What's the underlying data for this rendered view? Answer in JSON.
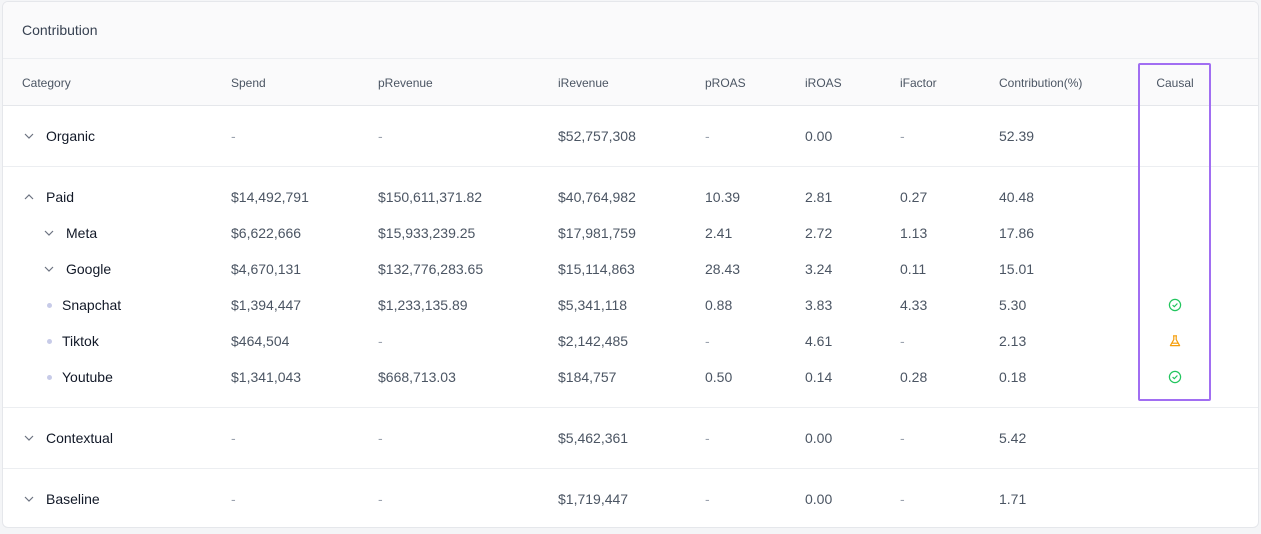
{
  "card": {
    "title": "Contribution"
  },
  "columns": [
    "Category",
    "Spend",
    "pRevenue",
    "iRevenue",
    "pROAS",
    "iROAS",
    "iFactor",
    "Contribution(%)",
    "Causal"
  ],
  "groups": [
    {
      "rows": [
        {
          "label": "Organic",
          "marker": "chevron-down",
          "indent": 0,
          "spend": "-",
          "prevenue": "-",
          "irevenue": "$52,757,308",
          "proas": "-",
          "iroas": "0.00",
          "ifactor": "-",
          "contribution": "52.39",
          "causal": ""
        }
      ]
    },
    {
      "rows": [
        {
          "label": "Paid",
          "marker": "chevron-up",
          "indent": 0,
          "spend": "$14,492,791",
          "prevenue": "$150,611,371.82",
          "irevenue": "$40,764,982",
          "proas": "10.39",
          "iroas": "2.81",
          "ifactor": "0.27",
          "contribution": "40.48",
          "causal": ""
        },
        {
          "label": "Meta",
          "marker": "chevron-down",
          "indent": 1,
          "spend": "$6,622,666",
          "prevenue": "$15,933,239.25",
          "irevenue": "$17,981,759",
          "proas": "2.41",
          "iroas": "2.72",
          "ifactor": "1.13",
          "contribution": "17.86",
          "causal": ""
        },
        {
          "label": "Google",
          "marker": "chevron-down",
          "indent": 1,
          "spend": "$4,670,131",
          "prevenue": "$132,776,283.65",
          "irevenue": "$15,114,863",
          "proas": "28.43",
          "iroas": "3.24",
          "ifactor": "0.11",
          "contribution": "15.01",
          "causal": ""
        },
        {
          "label": "Snapchat",
          "marker": "dot",
          "indent": 1,
          "spend": "$1,394,447",
          "prevenue": "$1,233,135.89",
          "irevenue": "$5,341,118",
          "proas": "0.88",
          "iroas": "3.83",
          "ifactor": "4.33",
          "contribution": "5.30",
          "causal": "check-circle-icon"
        },
        {
          "label": "Tiktok",
          "marker": "dot",
          "indent": 1,
          "spend": "$464,504",
          "prevenue": "-",
          "irevenue": "$2,142,485",
          "proas": "-",
          "iroas": "4.61",
          "ifactor": "-",
          "contribution": "2.13",
          "causal": "flask-icon"
        },
        {
          "label": "Youtube",
          "marker": "dot",
          "indent": 1,
          "spend": "$1,341,043",
          "prevenue": "$668,713.03",
          "irevenue": "$184,757",
          "proas": "0.50",
          "iroas": "0.14",
          "ifactor": "0.28",
          "contribution": "0.18",
          "causal": "check-circle-icon"
        }
      ]
    },
    {
      "rows": [
        {
          "label": "Contextual",
          "marker": "chevron-down",
          "indent": 0,
          "spend": "-",
          "prevenue": "-",
          "irevenue": "$5,462,361",
          "proas": "-",
          "iroas": "0.00",
          "ifactor": "-",
          "contribution": "5.42",
          "causal": ""
        }
      ]
    },
    {
      "rows": [
        {
          "label": "Baseline",
          "marker": "chevron-down",
          "indent": 0,
          "spend": "-",
          "prevenue": "-",
          "irevenue": "$1,719,447",
          "proas": "-",
          "iroas": "0.00",
          "ifactor": "-",
          "contribution": "1.71",
          "causal": ""
        }
      ]
    }
  ],
  "colors": {
    "check": "#22c55e",
    "flask": "#f59e0b",
    "highlight": "#a16ef2"
  }
}
